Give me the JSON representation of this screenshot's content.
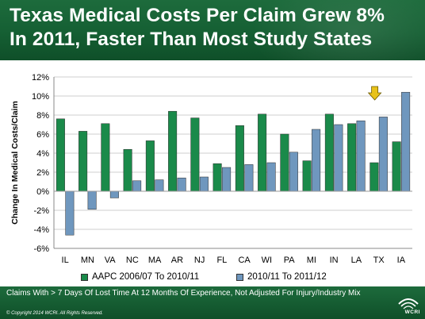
{
  "title_line1": "Texas Medical Costs Per Claim Grew 8%",
  "title_line2": "In 2011, Faster Than Most Study States",
  "footnote": "Claims With > 7 Days Of Lost Time At 12 Months Of Experience, Not Adjusted For Injury/Industry Mix",
  "copyright": "© Copyright 2014 WCRI. All Rights Reserved.",
  "logo_text": "WCRI",
  "colors": {
    "series1": "#1a8a4a",
    "series2": "#6f97be",
    "header": "#155f33",
    "highlight_arrow": "#e8c21a"
  },
  "chart_data": {
    "type": "bar",
    "title": "",
    "xlabel": "",
    "ylabel": "Change In Medical Costs/Claim",
    "ylim": [
      -6,
      12
    ],
    "yticks": [
      "-6%",
      "-4%",
      "-2%",
      "0%",
      "2%",
      "4%",
      "6%",
      "8%",
      "10%",
      "12%"
    ],
    "ytick_values": [
      -6,
      -4,
      -2,
      0,
      2,
      4,
      6,
      8,
      10,
      12
    ],
    "grid": true,
    "legend": "bottom",
    "highlight_category": "TX",
    "categories": [
      "IL",
      "MN",
      "VA",
      "NC",
      "MA",
      "AR",
      "NJ",
      "FL",
      "CA",
      "WI",
      "PA",
      "MI",
      "IN",
      "LA",
      "TX",
      "IA"
    ],
    "series": [
      {
        "name": "AAPC 2006/07 To 2010/11",
        "values": [
          7.6,
          6.3,
          7.1,
          4.4,
          5.3,
          8.4,
          7.7,
          2.9,
          6.9,
          8.1,
          6.0,
          3.2,
          8.1,
          7.1,
          3.0,
          5.2
        ]
      },
      {
        "name": "2010/11 To 2011/12",
        "values": [
          -4.6,
          -1.9,
          -0.7,
          1.1,
          1.2,
          1.4,
          1.5,
          2.5,
          2.8,
          3.0,
          4.1,
          6.5,
          7.0,
          7.4,
          7.8,
          10.4
        ]
      }
    ]
  }
}
